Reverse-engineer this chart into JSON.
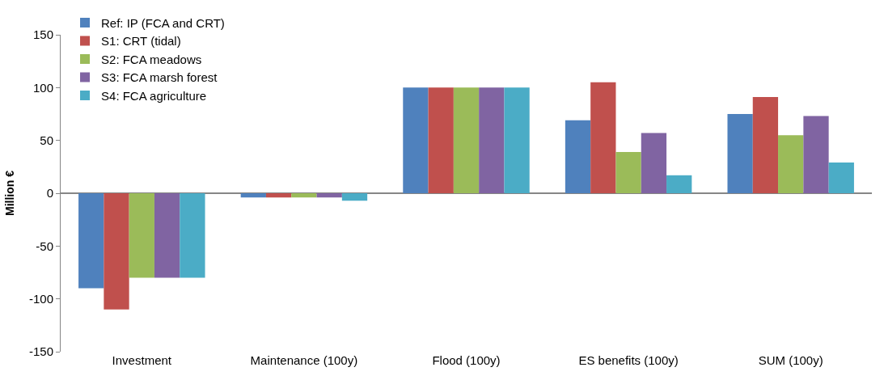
{
  "chart_data": {
    "type": "bar",
    "ylabel": "Million €",
    "categories": [
      "Investment",
      "Maintenance (100y)",
      "Flood (100y)",
      "ES benefits (100y)",
      "SUM (100y)"
    ],
    "series": [
      {
        "name": "Ref: IP (FCA and CRT)",
        "color": "#4f81bd",
        "values": [
          -90,
          -4,
          100,
          69,
          75
        ]
      },
      {
        "name": "S1: CRT (tidal)",
        "color": "#c0504d",
        "values": [
          -110,
          -4,
          100,
          105,
          91
        ]
      },
      {
        "name": "S2: FCA meadows",
        "color": "#9bbb59",
        "values": [
          -80,
          -4,
          100,
          39,
          55
        ]
      },
      {
        "name": "S3: FCA marsh forest",
        "color": "#8064a2",
        "values": [
          -80,
          -4,
          100,
          57,
          73
        ]
      },
      {
        "name": "S4: FCA agriculture",
        "color": "#4bacc6",
        "values": [
          -80,
          -7,
          100,
          17,
          29
        ]
      }
    ],
    "ylim": [
      -150,
      150
    ],
    "yticks": [
      -150,
      -100,
      -50,
      0,
      50,
      100,
      150
    ],
    "legend": "top left"
  }
}
